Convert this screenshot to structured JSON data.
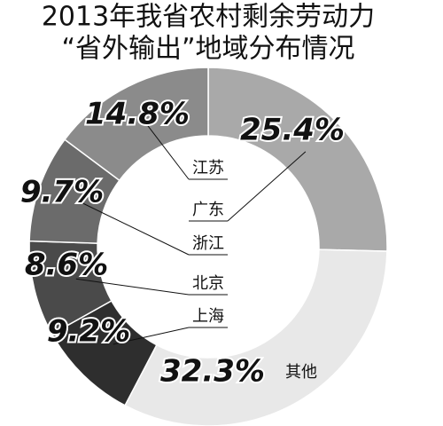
{
  "chart_data": {
    "type": "pie",
    "title": "2013年我省农村剩余劳动力",
    "subtitle": "“省外输出”地域分布情况",
    "categories": [
      "广东",
      "其他",
      "上海",
      "北京",
      "浙江",
      "江苏"
    ],
    "values": [
      25.4,
      32.3,
      9.2,
      8.6,
      9.7,
      14.8
    ],
    "value_labels": [
      "25.4%",
      "32.3%",
      "9.2%",
      "8.6%",
      "9.7%",
      "14.8%"
    ],
    "colors": [
      "#a9a9a9",
      "#e8e8e8",
      "#2e2e2e",
      "#4a4a4a",
      "#6b6b6b",
      "#8b8b8b"
    ],
    "donut": true
  }
}
